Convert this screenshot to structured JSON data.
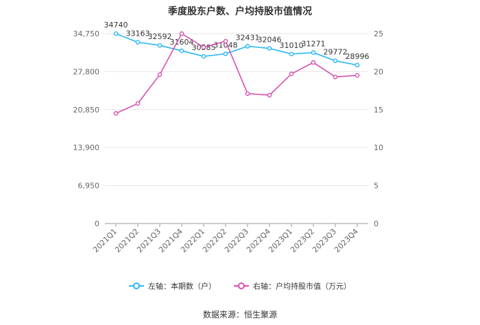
{
  "chart_data": {
    "type": "line",
    "title": "季度股东户数、户均持股市值情况",
    "categories": [
      "2021Q1",
      "2021Q2",
      "2021Q3",
      "2021Q4",
      "2022Q1",
      "2022Q2",
      "2022Q3",
      "2022Q4",
      "2023Q1",
      "2023Q2",
      "2023Q3",
      "2023Q4"
    ],
    "series": [
      {
        "name": "左轴：本期数（户）",
        "axis": "left",
        "color": "#29b6f6",
        "values": [
          34740,
          33163,
          32592,
          31604,
          30585,
          31048,
          32431,
          32046,
          31010,
          31271,
          29772,
          28996
        ],
        "labels": [
          "34740",
          "33163",
          "32592",
          "31604",
          "30585",
          "31048",
          "32431",
          "32046",
          "31010",
          "31271",
          "29772",
          "28996"
        ]
      },
      {
        "name": "右轴：户均持股市值（万元）",
        "axis": "right",
        "color": "#d64fb0",
        "values": [
          14.5,
          15.8,
          19.6,
          25.0,
          23.2,
          24.0,
          17.1,
          16.9,
          19.7,
          21.2,
          19.3,
          19.5
        ]
      }
    ],
    "y_left": {
      "ylim": [
        0,
        34750
      ],
      "ticks": [
        0,
        6950,
        13900,
        20850,
        27800,
        34750
      ],
      "tick_labels": [
        "0",
        "6,950",
        "13,900",
        "20,850",
        "27,800",
        "34,750"
      ]
    },
    "y_right": {
      "ylim": [
        0,
        25
      ],
      "ticks": [
        0,
        5,
        10,
        15,
        20,
        25
      ],
      "tick_labels": [
        "0",
        "5",
        "10",
        "15",
        "20",
        "25"
      ]
    },
    "grid": true,
    "legend_position": "bottom"
  },
  "source_text": "数据来源：恒生聚源"
}
